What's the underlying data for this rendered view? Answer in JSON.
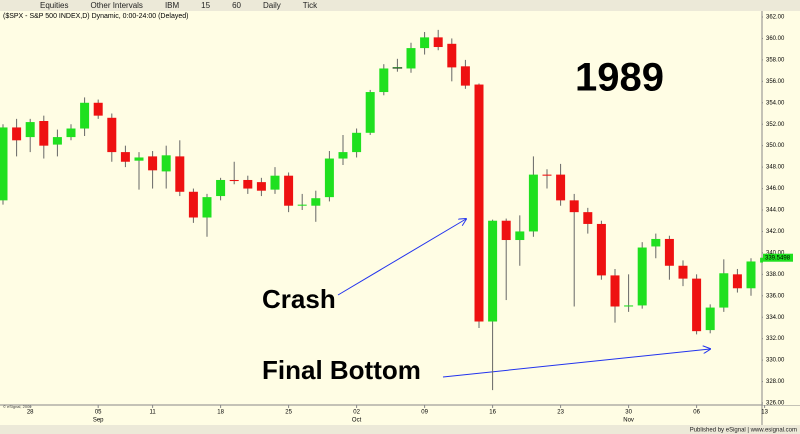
{
  "toolbar": [
    "Equities",
    "Other Intervals",
    "IBM",
    "15",
    "60",
    "Daily",
    "Tick"
  ],
  "chart_data": {
    "type": "candlestick",
    "title": "($SPX - S&P 500 INDEX,D) Dynamic, 0:00-24:00 (Delayed)",
    "categories": [
      null,
      null,
      "28",
      null,
      null,
      null,
      null,
      "05",
      null,
      null,
      null,
      "11",
      null,
      null,
      null,
      null,
      "18",
      null,
      null,
      null,
      null,
      "25",
      null,
      null,
      null,
      null,
      "02",
      null,
      null,
      null,
      null,
      "09",
      null,
      null,
      null,
      null,
      "16",
      null,
      null,
      null,
      null,
      "23",
      null,
      null,
      null,
      null,
      "30",
      null,
      null,
      null,
      null,
      "06",
      null,
      null,
      null,
      null,
      "13"
    ],
    "month_categories": [
      null,
      null,
      null,
      null,
      null,
      null,
      null,
      "Sep",
      null,
      null,
      null,
      null,
      null,
      null,
      null,
      null,
      null,
      null,
      null,
      null,
      null,
      null,
      null,
      null,
      null,
      null,
      "Oct",
      null,
      null,
      null,
      null,
      null,
      null,
      null,
      null,
      null,
      null,
      null,
      null,
      null,
      null,
      null,
      null,
      null,
      null,
      null,
      "Nov",
      null,
      null,
      null,
      null,
      null,
      null,
      null,
      null,
      null,
      null
    ],
    "open": [
      344.9,
      351.7,
      350.8,
      352.3,
      350.1,
      350.8,
      351.6,
      354.0,
      352.6,
      349.4,
      348.6,
      349.0,
      347.6,
      349.0,
      345.7,
      343.3,
      345.3,
      346.8,
      346.8,
      346.6,
      345.9,
      347.2,
      344.4,
      344.4,
      345.2,
      348.8,
      349.4,
      351.2,
      355.0,
      357.3,
      357.2,
      359.1,
      360.1,
      359.5,
      357.4,
      355.7,
      333.6,
      343.0,
      341.2,
      342.0,
      347.3,
      347.3,
      344.9,
      343.8,
      342.7,
      337.9,
      335.0,
      335.1,
      340.6,
      341.3,
      338.8,
      337.6,
      332.8,
      334.9,
      338.0,
      336.7,
      339.1
    ],
    "high": [
      352.0,
      352.5,
      352.5,
      352.8,
      351.5,
      352.0,
      354.5,
      354.3,
      353.0,
      350.0,
      349.4,
      349.5,
      350.0,
      350.5,
      346.0,
      345.5,
      347.0,
      348.5,
      347.2,
      347.0,
      348.0,
      347.5,
      345.5,
      345.8,
      349.5,
      351.0,
      351.6,
      355.2,
      357.6,
      358.1,
      359.6,
      360.6,
      360.8,
      360.0,
      358.0,
      355.8,
      343.1,
      343.2,
      343.5,
      349.0,
      347.8,
      348.3,
      345.5,
      344.2,
      343.0,
      338.5,
      338.0,
      341.0,
      341.8,
      341.6,
      339.3,
      338.0,
      335.2,
      339.4,
      338.5,
      339.5,
      340.5
    ],
    "low": [
      344.5,
      349.0,
      349.4,
      348.8,
      349.0,
      350.5,
      350.9,
      352.5,
      348.5,
      348.0,
      345.9,
      346.0,
      346.0,
      345.3,
      342.8,
      341.5,
      344.9,
      346.4,
      345.5,
      345.3,
      345.5,
      343.8,
      344.0,
      342.9,
      344.8,
      348.2,
      348.9,
      351.0,
      354.7,
      356.9,
      356.8,
      358.5,
      358.9,
      356.0,
      355.3,
      333.0,
      327.2,
      335.6,
      338.8,
      341.5,
      346.0,
      344.4,
      335.0,
      341.8,
      337.5,
      333.5,
      334.5,
      334.8,
      339.5,
      337.5,
      336.9,
      332.4,
      332.5,
      334.5,
      336.3,
      336.0,
      338.8
    ],
    "close": [
      351.7,
      350.5,
      352.2,
      350.0,
      350.8,
      351.6,
      354.0,
      352.8,
      349.4,
      348.5,
      348.9,
      347.7,
      349.1,
      345.7,
      343.3,
      345.2,
      346.8,
      346.7,
      346.0,
      345.8,
      347.2,
      344.4,
      344.5,
      345.1,
      348.8,
      349.4,
      351.2,
      355.0,
      357.2,
      357.3,
      359.1,
      360.1,
      359.2,
      357.3,
      355.6,
      333.6,
      343.0,
      341.2,
      342.0,
      347.3,
      347.2,
      344.9,
      343.8,
      342.7,
      337.9,
      335.0,
      335.1,
      340.5,
      341.3,
      338.8,
      337.6,
      332.7,
      334.9,
      338.1,
      336.7,
      339.2,
      339.5498
    ],
    "last_price_label": "339.5498",
    "up_color": "#1fe01f",
    "down_color": "#ee1111",
    "ylim": [
      326,
      362
    ],
    "yticks": [
      {
        "value": 326,
        "label": "326.00"
      },
      {
        "value": 328,
        "label": "328.00"
      },
      {
        "value": 330,
        "label": "330.00"
      },
      {
        "value": 332,
        "label": "332.00"
      },
      {
        "value": 334,
        "label": "334.00"
      },
      {
        "value": 336,
        "label": "336.00"
      },
      {
        "value": 338,
        "label": "338.00"
      },
      {
        "value": 340,
        "label": "340.00"
      },
      {
        "value": 342,
        "label": "342.00"
      },
      {
        "value": 344,
        "label": "344.00"
      },
      {
        "value": 346,
        "label": "346.00"
      },
      {
        "value": 348,
        "label": "348.00"
      },
      {
        "value": 350,
        "label": "350.00"
      },
      {
        "value": 352,
        "label": "352.00"
      },
      {
        "value": 354,
        "label": "354.00"
      },
      {
        "value": 356,
        "label": "356.00"
      },
      {
        "value": 358,
        "label": "358.00"
      },
      {
        "value": 360,
        "label": "360.00"
      },
      {
        "value": 362,
        "label": "362.00"
      }
    ],
    "annotations": [
      "1989",
      "Crash",
      "Final Bottom"
    ]
  },
  "footer": {
    "copyright": "© eSignal, 2009",
    "publisher": "Published by eSignal | www.esignal.com"
  }
}
